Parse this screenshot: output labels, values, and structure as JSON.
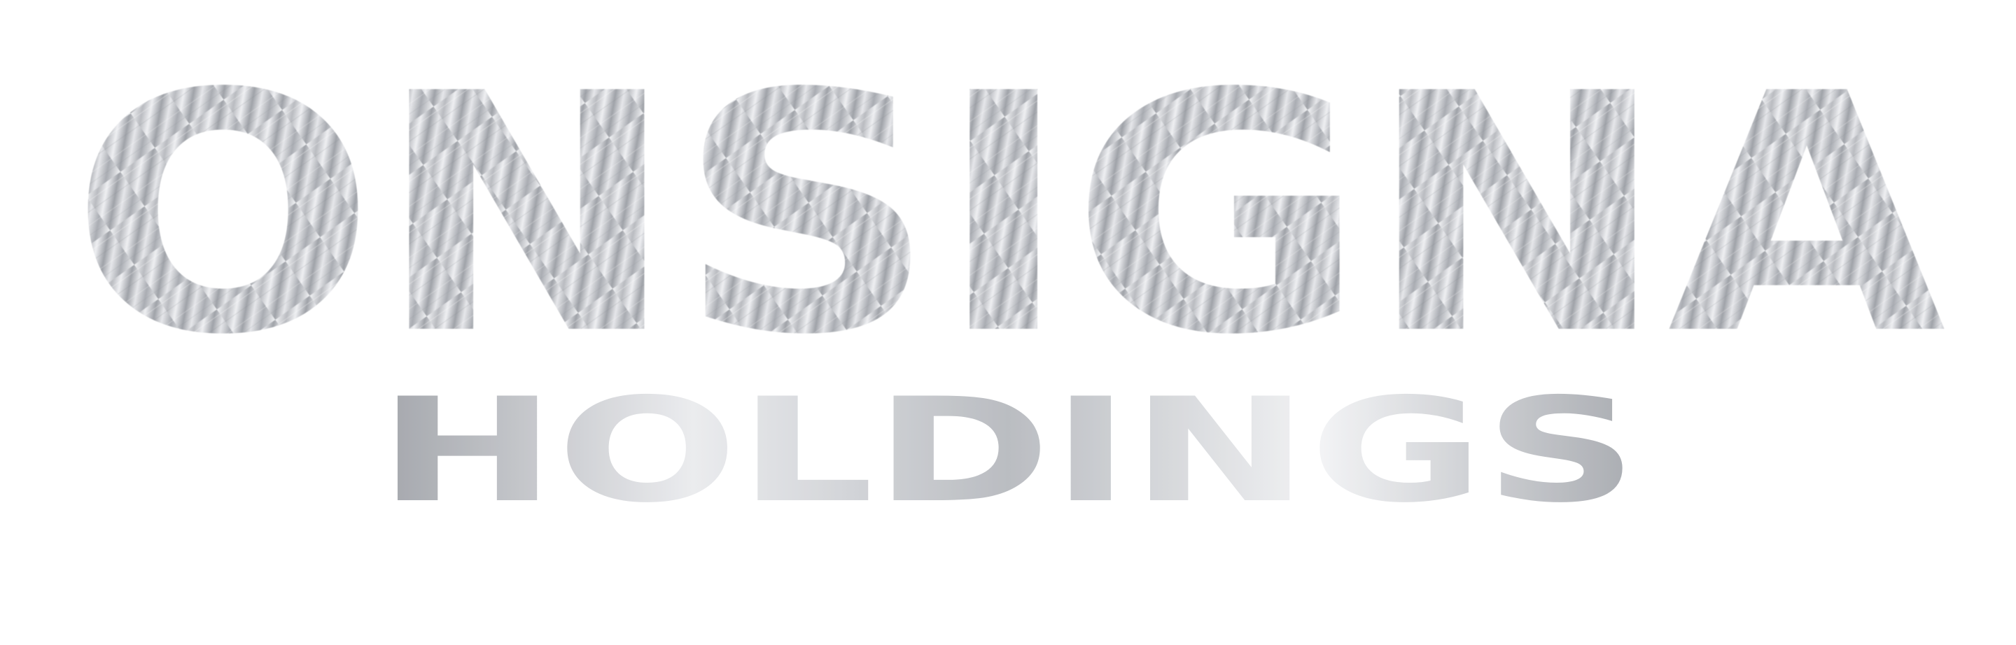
{
  "logo": {
    "line1": "ONSIGNA",
    "line2": "HOLDINGS",
    "colors": {
      "metal_light": "#ffffff",
      "metal_mid": "#c9cbcf",
      "metal_dark": "#8a8c91",
      "background": "#ffffff"
    }
  }
}
